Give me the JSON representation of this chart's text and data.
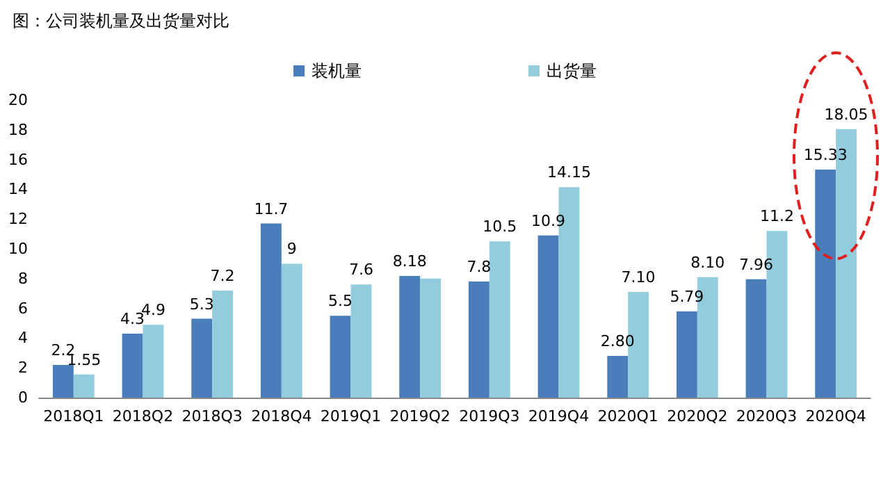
{
  "chart_data": {
    "type": "bar",
    "title": "图：公司装机量及出货量对比",
    "categories": [
      "2018Q1",
      "2018Q2",
      "2018Q3",
      "2018Q4",
      "2019Q1",
      "2019Q2",
      "2019Q3",
      "2019Q4",
      "2020Q1",
      "2020Q2",
      "2020Q3",
      "2020Q4"
    ],
    "series": [
      {
        "name": "装机量",
        "color": "#4a7ebb",
        "values": [
          2.2,
          4.3,
          5.3,
          11.7,
          5.5,
          8.18,
          7.8,
          10.9,
          2.8,
          5.79,
          7.96,
          15.33
        ],
        "value_labels": [
          "2.2",
          "4.3",
          "5.3",
          "11.7",
          "5.5",
          "8.18",
          "7.8",
          "10.9",
          "2.80",
          "5.79",
          "7.96",
          "15.33"
        ]
      },
      {
        "name": "出货量",
        "color": "#93cddd",
        "values": [
          1.55,
          4.9,
          7.2,
          9,
          7.6,
          8.0,
          10.5,
          14.15,
          7.1,
          8.1,
          11.2,
          18.05
        ],
        "value_labels": [
          "1.55",
          "4.9",
          "7.2",
          "9",
          "7.6",
          null,
          "10.5",
          "14.15",
          "7.10",
          "8.10",
          "11.2",
          "18.05"
        ]
      }
    ],
    "ylim": [
      0,
      20
    ],
    "yticks": [
      0,
      2,
      4,
      6,
      8,
      10,
      12,
      14,
      16,
      18,
      20
    ],
    "grid": false,
    "legend": "top"
  }
}
